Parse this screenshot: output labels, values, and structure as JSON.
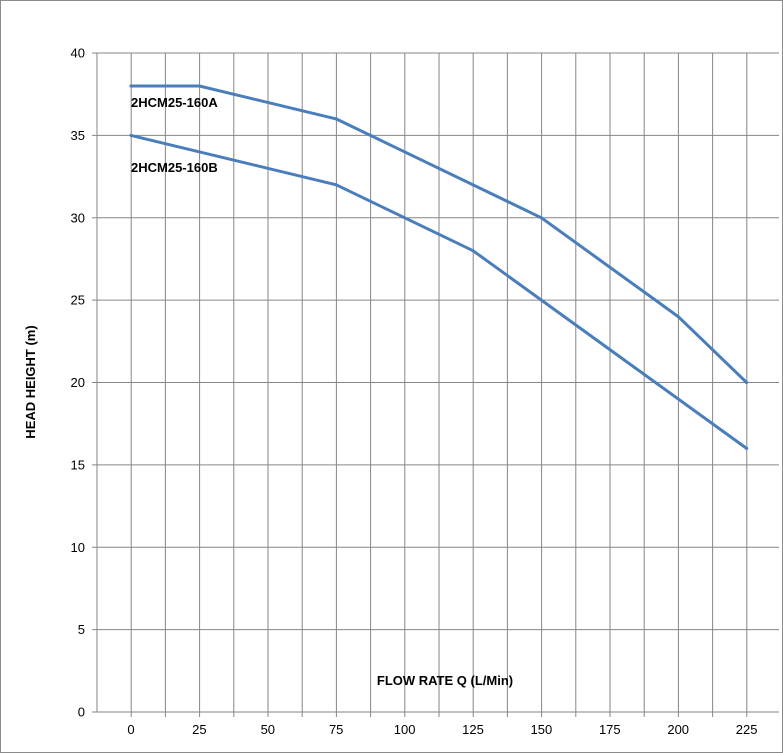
{
  "chart_data": {
    "type": "line",
    "title": "",
    "xlabel": "FLOW RATE Q (L/Min)",
    "ylabel": "HEAD HEIGHT (m)",
    "categories": [
      "0",
      "25",
      "50",
      "75",
      "100",
      "125",
      "150",
      "175",
      "200",
      "225"
    ],
    "x": [
      0,
      25,
      50,
      75,
      100,
      125,
      150,
      175,
      200,
      225
    ],
    "ylim": [
      0,
      40
    ],
    "yticks": [
      "0",
      "5",
      "10",
      "15",
      "20",
      "25",
      "30",
      "35",
      "40"
    ],
    "grid": true,
    "legend": "inline labels",
    "series": [
      {
        "name": "2HCM25-160A",
        "x": [
          0,
          25,
          75,
          150,
          200,
          225
        ],
        "values": [
          38,
          38,
          36,
          30,
          24,
          20
        ],
        "color": "#4a7ebb"
      },
      {
        "name": "2HCM25-160B",
        "x": [
          0,
          75,
          125,
          150,
          225
        ],
        "values": [
          35,
          32,
          28,
          25,
          16
        ],
        "color": "#4a7ebb"
      }
    ]
  },
  "colors": {
    "gridline": "#868686",
    "axis": "#868686",
    "series_line": "#4a7ebb"
  }
}
